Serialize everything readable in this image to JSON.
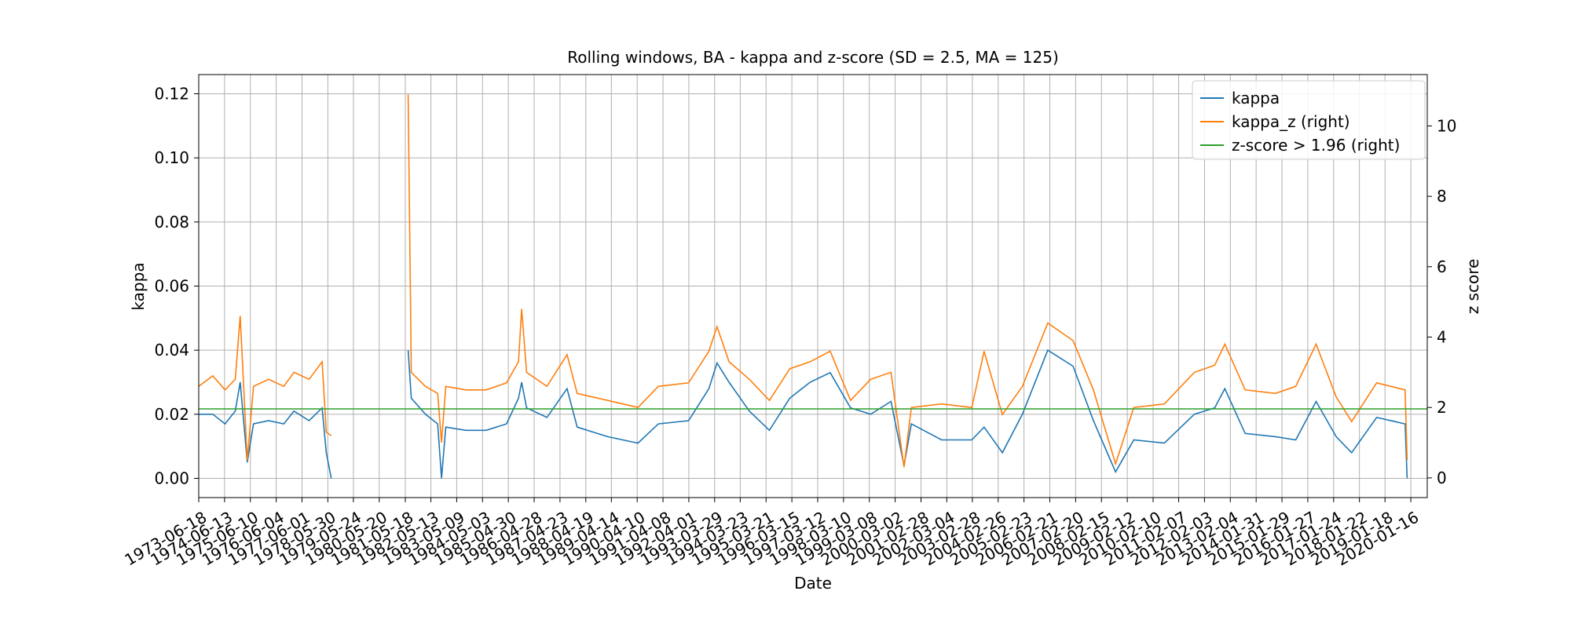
{
  "chart_data": {
    "type": "line",
    "title": "Rolling windows, BA - kappa and z-score (SD = 2.5, MA = 125)",
    "x_label": "Date",
    "y_label": "kappa",
    "y2_label": "z score",
    "x": [
      1973.46,
      1974.0,
      1974.47,
      1974.86,
      1975.05,
      1975.32,
      1975.56,
      1976.14,
      1976.72,
      1977.11,
      1977.69,
      1978.19,
      1978.35,
      1978.54,
      1980.0,
      1981.49,
      1981.61,
      1982.15,
      1982.62,
      1982.77,
      1982.93,
      1983.7,
      1984.48,
      1985.26,
      1985.72,
      1985.84,
      1986.03,
      1986.81,
      1987.58,
      1987.97,
      1989.14,
      1990.3,
      1991.08,
      1992.24,
      1993.02,
      1993.33,
      1993.79,
      1994.57,
      1995.34,
      1996.12,
      1996.9,
      1997.67,
      1998.45,
      1999.22,
      2000.0,
      2000.5,
      2000.78,
      2001.94,
      2003.1,
      2003.57,
      2004.27,
      2005.04,
      2006.01,
      2006.98,
      2007.76,
      2008.61,
      2009.31,
      2010.48,
      2011.63,
      2012.41,
      2012.8,
      2013.58,
      2014.74,
      2015.52,
      2016.3,
      2017.07,
      2017.66,
      2018.62,
      2019.71,
      2019.79
    ],
    "series": [
      {
        "name": "kappa",
        "color": "#1f77b4",
        "axis": "y",
        "values": [
          0.02,
          0.02,
          0.017,
          0.021,
          0.03,
          0.005,
          0.017,
          0.018,
          0.017,
          0.021,
          0.018,
          0.022,
          0.008,
          0.0,
          null,
          0.04,
          0.025,
          0.02,
          0.017,
          0.0,
          0.016,
          0.015,
          0.015,
          0.017,
          0.025,
          0.03,
          0.022,
          0.019,
          0.028,
          0.016,
          0.013,
          0.011,
          0.017,
          0.018,
          0.028,
          0.036,
          0.03,
          0.021,
          0.015,
          0.025,
          0.03,
          0.033,
          0.022,
          0.02,
          0.024,
          0.004,
          0.017,
          0.012,
          0.012,
          0.016,
          0.008,
          0.02,
          0.04,
          0.035,
          0.018,
          0.002,
          0.012,
          0.011,
          0.02,
          0.022,
          0.028,
          0.014,
          0.013,
          0.012,
          0.024,
          0.013,
          0.008,
          0.019,
          0.017,
          0.0
        ]
      },
      {
        "name": "kappa_z (right)",
        "color": "#ff7f0e",
        "axis": "y2",
        "values": [
          2.6,
          2.9,
          2.5,
          2.8,
          4.6,
          0.5,
          2.6,
          2.8,
          2.6,
          3.0,
          2.8,
          3.3,
          1.3,
          1.2,
          null,
          10.9,
          3.0,
          2.6,
          2.4,
          1.0,
          2.6,
          2.5,
          2.5,
          2.7,
          3.3,
          4.8,
          3.0,
          2.6,
          3.5,
          2.4,
          2.2,
          2.0,
          2.6,
          2.7,
          3.6,
          4.3,
          3.3,
          2.8,
          2.2,
          3.1,
          3.3,
          3.6,
          2.2,
          2.8,
          3.0,
          0.3,
          2.0,
          2.1,
          2.0,
          3.6,
          1.8,
          2.6,
          4.4,
          3.9,
          2.5,
          0.4,
          2.0,
          2.1,
          3.0,
          3.2,
          3.8,
          2.5,
          2.4,
          2.6,
          3.8,
          2.3,
          1.6,
          2.7,
          2.5,
          0.5
        ]
      },
      {
        "name": "z-score > 1.96 (right)",
        "color": "#2ca02c",
        "axis": "y2",
        "x": [
          1973.46,
          2020.56
        ],
        "values": [
          1.96,
          1.96
        ]
      }
    ],
    "xlim": [
      1973.46,
      2020.56
    ],
    "xticks": [
      {
        "value": 1973.46,
        "label": "1973-06-18"
      },
      {
        "value": 1974.45,
        "label": "1974-06-13"
      },
      {
        "value": 1975.44,
        "label": "1975-06-10"
      },
      {
        "value": 1976.43,
        "label": "1976-06-04"
      },
      {
        "value": 1977.42,
        "label": "1977-06-01"
      },
      {
        "value": 1978.41,
        "label": "1978-05-30"
      },
      {
        "value": 1979.39,
        "label": "1979-05-24"
      },
      {
        "value": 1980.38,
        "label": "1980-05-20"
      },
      {
        "value": 1981.38,
        "label": "1981-05-18"
      },
      {
        "value": 1982.36,
        "label": "1982-05-13"
      },
      {
        "value": 1983.35,
        "label": "1983-05-09"
      },
      {
        "value": 1984.34,
        "label": "1984-05-03"
      },
      {
        "value": 1985.33,
        "label": "1985-04-30"
      },
      {
        "value": 1986.32,
        "label": "1986-04-28"
      },
      {
        "value": 1987.31,
        "label": "1987-04-23"
      },
      {
        "value": 1988.3,
        "label": "1988-04-19"
      },
      {
        "value": 1989.28,
        "label": "1989-04-14"
      },
      {
        "value": 1990.27,
        "label": "1990-04-10"
      },
      {
        "value": 1991.26,
        "label": "1991-04-08"
      },
      {
        "value": 1992.25,
        "label": "1992-04-01"
      },
      {
        "value": 1993.24,
        "label": "1993-03-29"
      },
      {
        "value": 1994.22,
        "label": "1994-03-23"
      },
      {
        "value": 1995.21,
        "label": "1995-03-21"
      },
      {
        "value": 1996.2,
        "label": "1996-03-15"
      },
      {
        "value": 1997.19,
        "label": "1997-03-12"
      },
      {
        "value": 1998.18,
        "label": "1998-03-10"
      },
      {
        "value": 1999.17,
        "label": "1999-03-08"
      },
      {
        "value": 2000.16,
        "label": "2000-03-02"
      },
      {
        "value": 2001.15,
        "label": "2001-02-28"
      },
      {
        "value": 2002.14,
        "label": "2002-03-04"
      },
      {
        "value": 2003.12,
        "label": "2003-02-28"
      },
      {
        "value": 2004.11,
        "label": "2004-02-26"
      },
      {
        "value": 2005.1,
        "label": "2005-02-23"
      },
      {
        "value": 2006.09,
        "label": "2006-02-21"
      },
      {
        "value": 2007.08,
        "label": "2007-02-20"
      },
      {
        "value": 2008.07,
        "label": "2008-02-15"
      },
      {
        "value": 2009.06,
        "label": "2009-02-12"
      },
      {
        "value": 2010.05,
        "label": "2010-02-10"
      },
      {
        "value": 2011.03,
        "label": "2011-02-07"
      },
      {
        "value": 2012.02,
        "label": "2012-02-03"
      },
      {
        "value": 2013.01,
        "label": "2013-02-04"
      },
      {
        "value": 2014.0,
        "label": "2014-01-31"
      },
      {
        "value": 2014.99,
        "label": "2015-01-29"
      },
      {
        "value": 2015.98,
        "label": "2016-01-27"
      },
      {
        "value": 2016.97,
        "label": "2017-01-24"
      },
      {
        "value": 2017.96,
        "label": "2018-01-22"
      },
      {
        "value": 2018.94,
        "label": "2019-01-18"
      },
      {
        "value": 2019.93,
        "label": "2020-01-16"
      }
    ],
    "ylim": [
      -0.006,
      0.126
    ],
    "yticks": [
      {
        "value": 0,
        "label": "0.00"
      },
      0.02,
      0.04,
      0.06,
      0.08,
      {
        "value": 0.1,
        "label": "0.10"
      },
      0.12
    ],
    "y2lim": [
      -0.56,
      11.46
    ],
    "y2ticks": [
      0,
      2,
      4,
      6,
      8,
      10
    ],
    "grid": true,
    "legend": "upper right"
  }
}
